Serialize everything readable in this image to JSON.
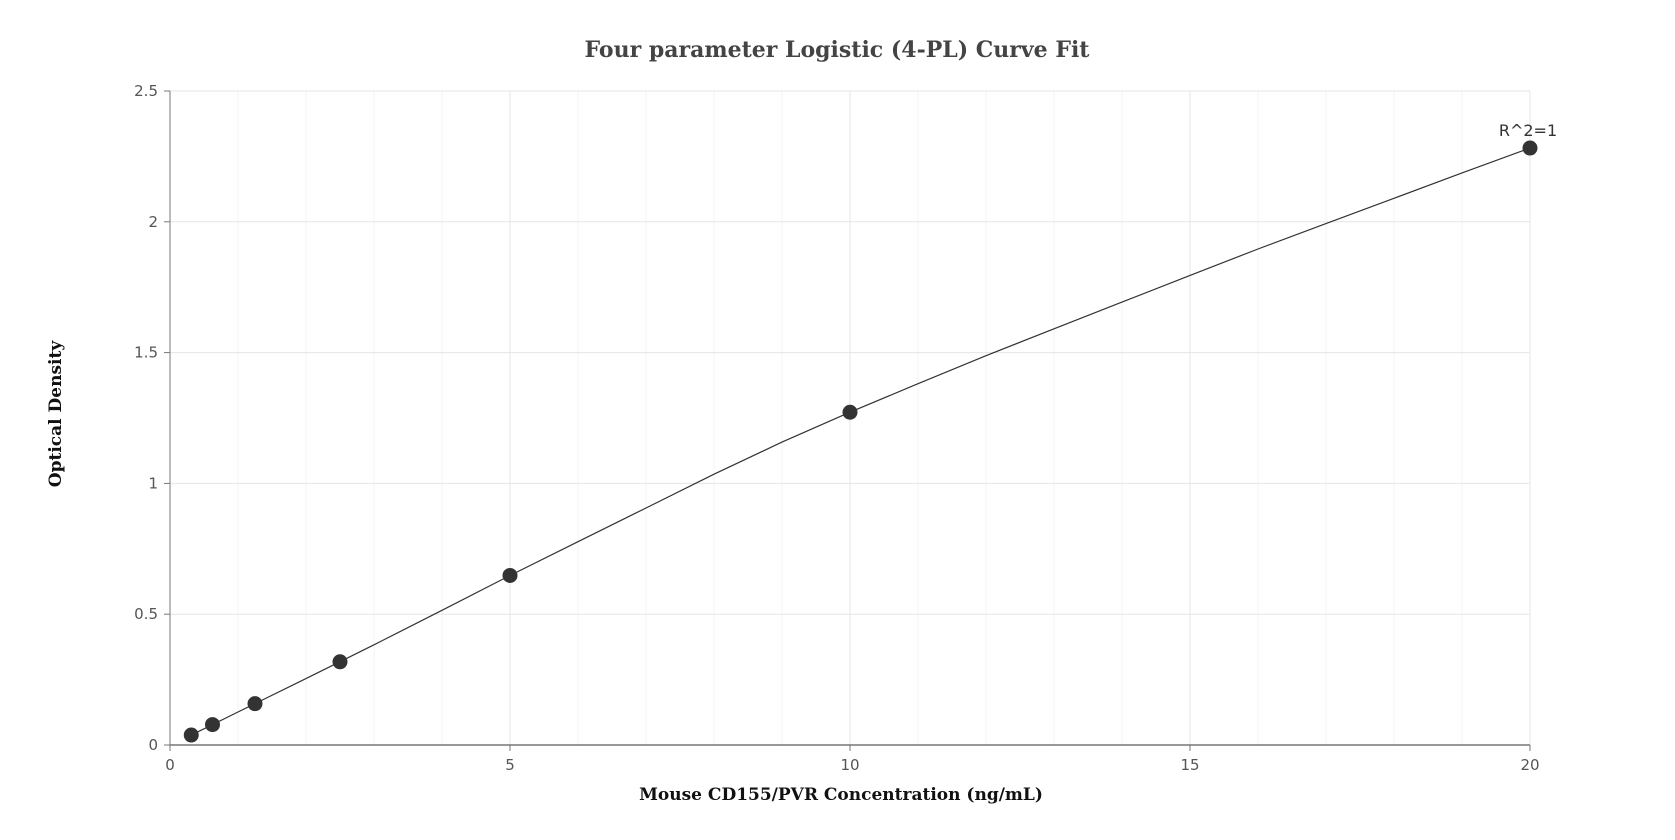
{
  "chart_data": {
    "type": "scatter",
    "title": "Four parameter Logistic (4-PL) Curve Fit",
    "xlabel": "Mouse CD155/PVR Concentration (ng/mL)",
    "ylabel": "Optical Density",
    "xlim": [
      0,
      20
    ],
    "ylim": [
      0,
      2.5
    ],
    "x_ticks": [
      0,
      5,
      10,
      15,
      20
    ],
    "x_tick_labels": [
      "0",
      "5",
      "10",
      "15",
      "20"
    ],
    "y_ticks": [
      0,
      0.5,
      1,
      1.5,
      2,
      2.5
    ],
    "y_tick_labels": [
      "0",
      "0.5",
      "1",
      "1.5",
      "2",
      "2.5"
    ],
    "x_minor_step": 1,
    "grid": true,
    "series": [
      {
        "kind": "points",
        "x": [
          0.3125,
          0.625,
          1.25,
          2.5,
          5,
          10,
          20
        ],
        "y": [
          0.038,
          0.078,
          0.158,
          0.318,
          0.648,
          1.272,
          2.282
        ]
      },
      {
        "kind": "fit-curve",
        "x": [
          0.3125,
          1,
          2,
          3,
          4,
          5,
          6,
          7,
          8,
          9,
          10,
          11,
          12,
          13,
          14,
          15,
          16,
          17,
          18,
          19,
          20
        ],
        "y": [
          0.038,
          0.126,
          0.254,
          0.383,
          0.515,
          0.648,
          0.777,
          0.906,
          1.035,
          1.158,
          1.272,
          1.381,
          1.488,
          1.591,
          1.693,
          1.795,
          1.896,
          1.993,
          2.09,
          2.187,
          2.282
        ]
      }
    ],
    "annotations": [
      {
        "text": "R^2=1",
        "x": 20,
        "y": 2.282
      }
    ],
    "colors": {
      "point": "#333333",
      "curve": "#333333",
      "grid_major": "#e3e6ea",
      "grid_minor": "#f1f3f5",
      "axis": "#777777"
    }
  }
}
